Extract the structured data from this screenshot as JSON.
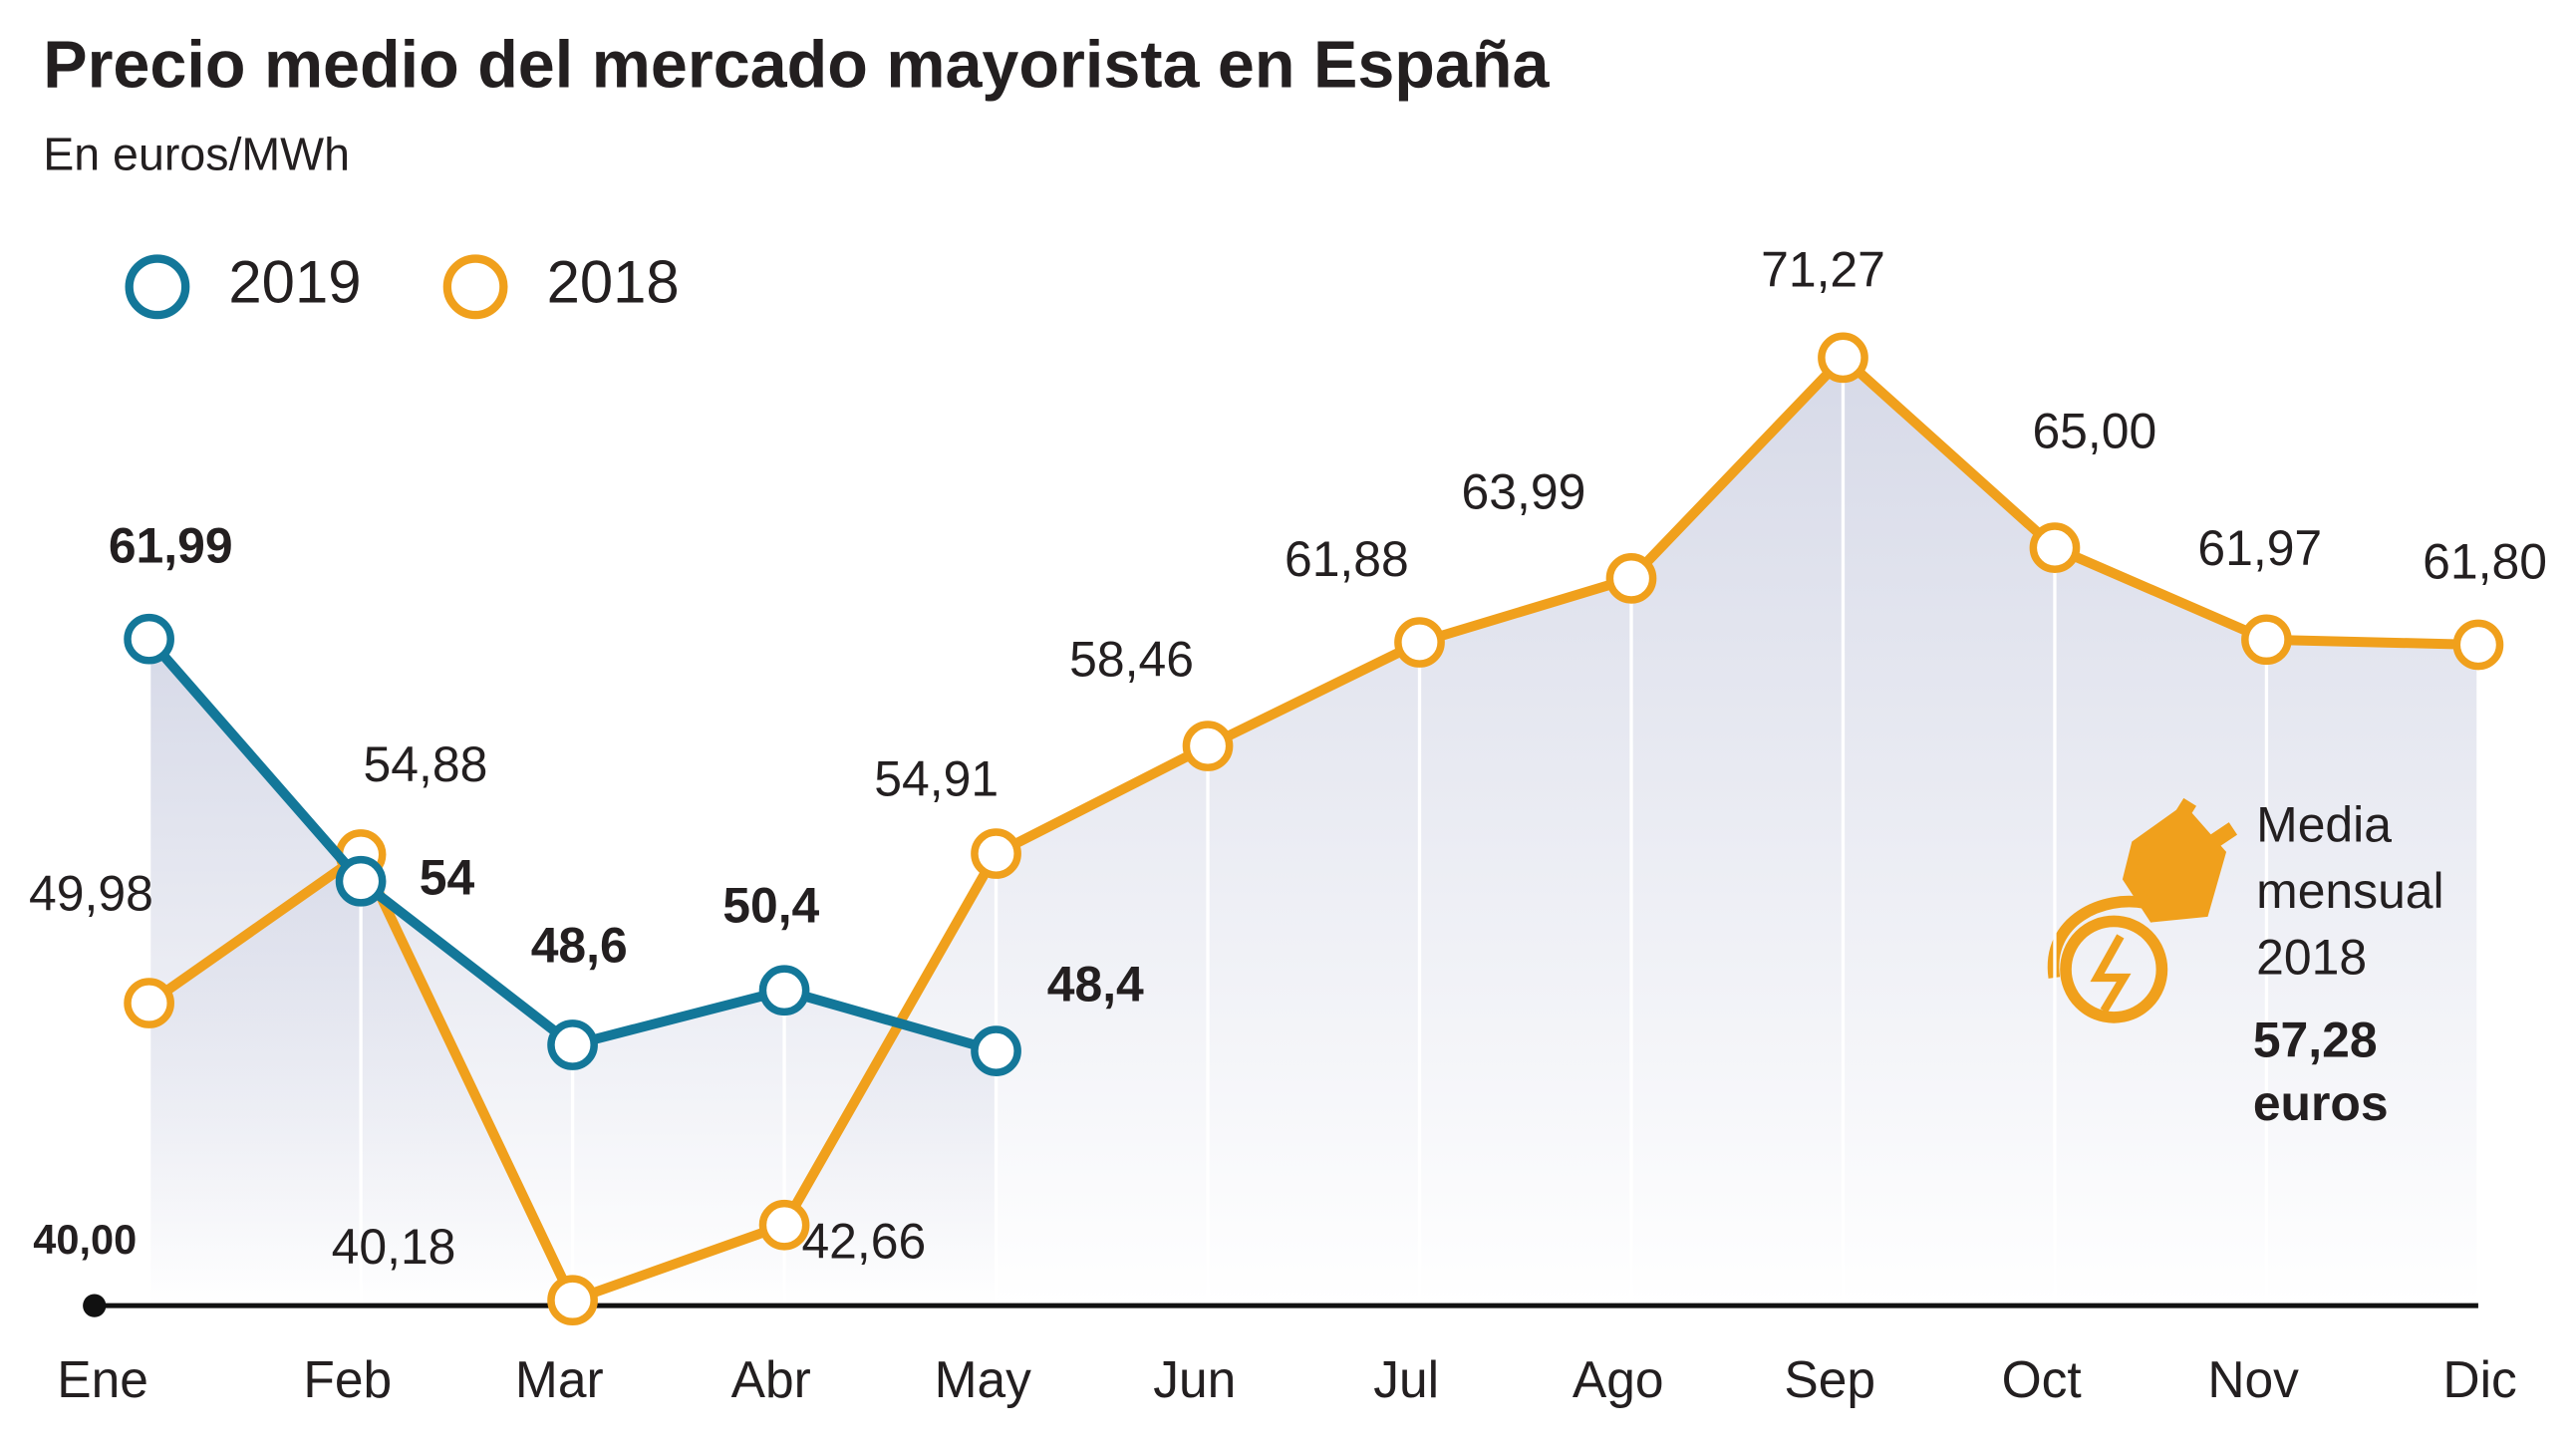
{
  "chart_data": {
    "type": "line",
    "title": "Precio medio del mercado mayorista en España",
    "subtitle": "En euros/MWh",
    "categories": [
      "Ene",
      "Feb",
      "Mar",
      "Abr",
      "May",
      "Jun",
      "Jul",
      "Ago",
      "Sep",
      "Oct",
      "Nov",
      "Dic"
    ],
    "series": [
      {
        "name": "2019",
        "color": "#137799",
        "values": [
          61.99,
          54,
          48.6,
          50.4,
          48.4,
          null,
          null,
          null,
          null,
          null,
          null,
          null
        ],
        "value_labels": [
          "61,99",
          "54",
          "48,6",
          "50,4",
          "48,4",
          null,
          null,
          null,
          null,
          null,
          null,
          null
        ]
      },
      {
        "name": "2018",
        "color": "#f0a01c",
        "values": [
          49.98,
          54.88,
          40.18,
          42.66,
          54.91,
          58.46,
          61.88,
          63.99,
          71.27,
          65.0,
          61.97,
          61.8
        ],
        "value_labels": [
          "49,98",
          "54,88",
          "40,18",
          "42,66",
          "54,91",
          "58,46",
          "61,88",
          "63,99",
          "71,27",
          "65,00",
          "61,97",
          "61,80"
        ]
      }
    ],
    "ylim": [
      40,
      75
    ],
    "yticks": [
      {
        "value": 40,
        "label": "40,00"
      }
    ],
    "legend": "top-left",
    "annotation": {
      "lines": [
        "Media",
        "mensual",
        "2018"
      ],
      "value": 57.28,
      "value_lines": [
        "57,28",
        "euros"
      ]
    }
  }
}
